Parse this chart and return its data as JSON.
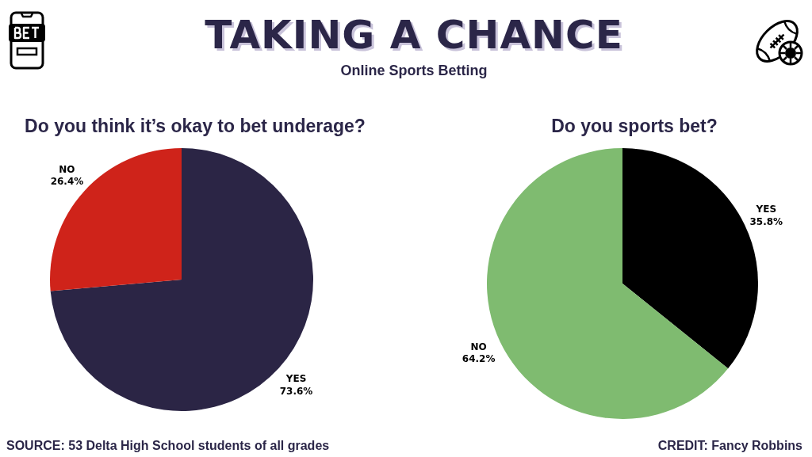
{
  "chart_data": [
    {
      "type": "other",
      "title": "TAKING A CHANCE",
      "subtitle": "Online Sports Betting",
      "annotations": [
        "SOURCE: 53 Delta High School students of all grades",
        "CREDIT: Fancy Robbins"
      ]
    },
    {
      "type": "pie",
      "title": "Do you think it’s okay to bet underage?",
      "categories": [
        "YES",
        "NO"
      ],
      "values": [
        73.6,
        26.4
      ],
      "colors": [
        "#2b2545",
        "#cf231a"
      ],
      "value_labels": [
        "73.6%",
        "26.4%"
      ]
    },
    {
      "type": "pie",
      "title": "Do you sports bet?",
      "categories": [
        "YES",
        "NO"
      ],
      "values": [
        35.8,
        64.2
      ],
      "colors": [
        "#000000",
        "#7fbb70"
      ],
      "value_labels": [
        "35.8%",
        "64.2%"
      ]
    }
  ]
}
